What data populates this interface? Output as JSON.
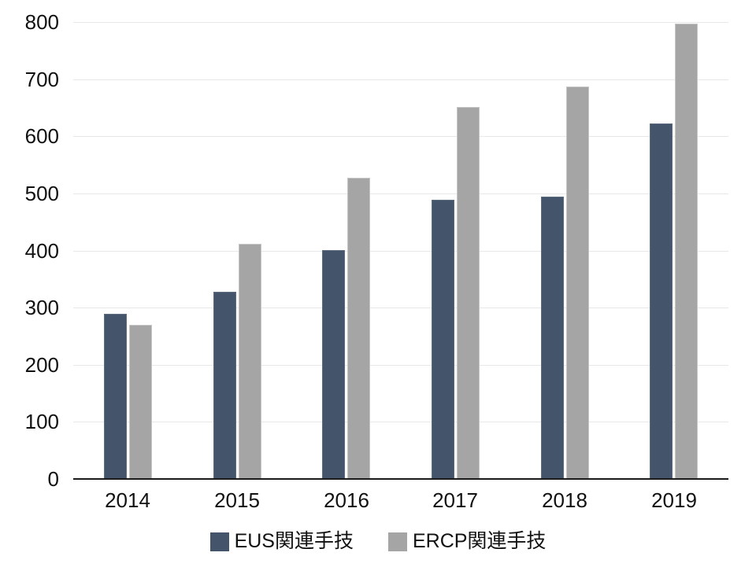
{
  "chart_data": {
    "type": "bar",
    "categories": [
      "2014",
      "2015",
      "2016",
      "2017",
      "2018",
      "2019"
    ],
    "series": [
      {
        "name": "EUS関連手技",
        "values": [
          289,
          328,
          401,
          489,
          494,
          623
        ],
        "color": "#44546A",
        "border_color": "#5E6C81"
      },
      {
        "name": "ERCP関連手技",
        "values": [
          270,
          412,
          528,
          651,
          687,
          797
        ],
        "color": "#A5A5A5",
        "border_color": "#C6C6C6"
      }
    ],
    "title": "",
    "xlabel": "",
    "ylabel": "",
    "ylim": [
      0,
      800
    ],
    "yticks": [
      0,
      100,
      200,
      300,
      400,
      500,
      600,
      700,
      800
    ],
    "grid": true,
    "legend_position": "bottom",
    "colors": {
      "grid_color": "#e8e8e8",
      "axis_color": "#1a1a1a",
      "text_color": "#111111",
      "background": "#ffffff"
    }
  }
}
